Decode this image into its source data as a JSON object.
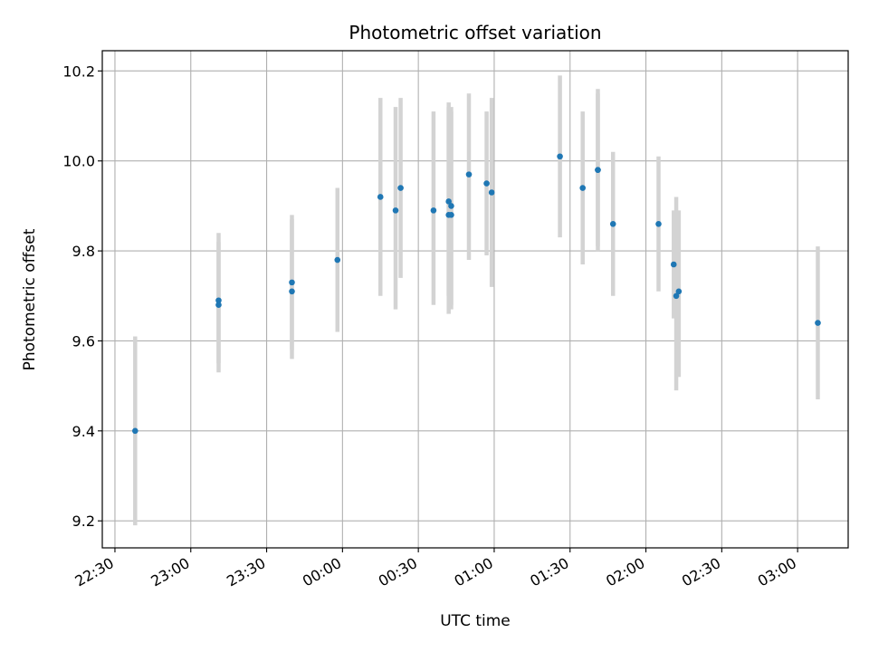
{
  "chart_data": {
    "type": "scatter",
    "title": "Photometric offset variation",
    "xlabel": "UTC time",
    "ylabel": "Photometric offset",
    "x_range": [
      "22:25",
      "03:20"
    ],
    "ylim": [
      9.14,
      10.245
    ],
    "grid": true,
    "x_ticks": [
      "22:30",
      "23:00",
      "23:30",
      "00:00",
      "00:30",
      "01:00",
      "01:30",
      "02:00",
      "02:30",
      "03:00"
    ],
    "y_ticks": [
      "9.2",
      "9.4",
      "9.6",
      "9.8",
      "10.0",
      "10.2"
    ],
    "colors": {
      "point": "#1f77b4",
      "errorbar": "#d3d3d3",
      "grid": "#b0b0b0"
    },
    "points": [
      {
        "x": "22:38",
        "y": 9.4,
        "ylo": 9.19,
        "yhi": 9.61
      },
      {
        "x": "23:11",
        "y": 9.69,
        "ylo": 9.55,
        "yhi": 9.84
      },
      {
        "x": "23:11",
        "y": 9.68,
        "ylo": 9.53,
        "yhi": 9.82
      },
      {
        "x": "23:40",
        "y": 9.73,
        "ylo": 9.58,
        "yhi": 9.88
      },
      {
        "x": "23:40",
        "y": 9.71,
        "ylo": 9.56,
        "yhi": 9.87
      },
      {
        "x": "23:58",
        "y": 9.78,
        "ylo": 9.62,
        "yhi": 9.94
      },
      {
        "x": "00:15",
        "y": 9.92,
        "ylo": 9.7,
        "yhi": 10.14
      },
      {
        "x": "00:21",
        "y": 9.89,
        "ylo": 9.67,
        "yhi": 10.12
      },
      {
        "x": "00:23",
        "y": 9.94,
        "ylo": 9.74,
        "yhi": 10.14
      },
      {
        "x": "00:36",
        "y": 9.89,
        "ylo": 9.68,
        "yhi": 10.11
      },
      {
        "x": "00:42",
        "y": 9.91,
        "ylo": 9.7,
        "yhi": 10.13
      },
      {
        "x": "00:42",
        "y": 9.88,
        "ylo": 9.66,
        "yhi": 10.12
      },
      {
        "x": "00:43",
        "y": 9.88,
        "ylo": 9.67,
        "yhi": 10.11
      },
      {
        "x": "00:43",
        "y": 9.9,
        "ylo": 9.68,
        "yhi": 10.12
      },
      {
        "x": "00:50",
        "y": 9.97,
        "ylo": 9.78,
        "yhi": 10.15
      },
      {
        "x": "00:57",
        "y": 9.95,
        "ylo": 9.79,
        "yhi": 10.11
      },
      {
        "x": "00:59",
        "y": 9.93,
        "ylo": 9.72,
        "yhi": 10.14
      },
      {
        "x": "01:26",
        "y": 10.01,
        "ylo": 9.83,
        "yhi": 10.19
      },
      {
        "x": "01:35",
        "y": 9.94,
        "ylo": 9.77,
        "yhi": 10.11
      },
      {
        "x": "01:41",
        "y": 9.98,
        "ylo": 9.81,
        "yhi": 10.15
      },
      {
        "x": "01:41",
        "y": 9.98,
        "ylo": 9.8,
        "yhi": 10.16
      },
      {
        "x": "01:47",
        "y": 9.86,
        "ylo": 9.7,
        "yhi": 10.02
      },
      {
        "x": "02:05",
        "y": 9.86,
        "ylo": 9.71,
        "yhi": 10.01
      },
      {
        "x": "02:11",
        "y": 9.77,
        "ylo": 9.65,
        "yhi": 9.89
      },
      {
        "x": "02:12",
        "y": 9.7,
        "ylo": 9.49,
        "yhi": 9.92
      },
      {
        "x": "02:13",
        "y": 9.71,
        "ylo": 9.52,
        "yhi": 9.89
      },
      {
        "x": "03:08",
        "y": 9.64,
        "ylo": 9.47,
        "yhi": 9.81
      }
    ]
  }
}
